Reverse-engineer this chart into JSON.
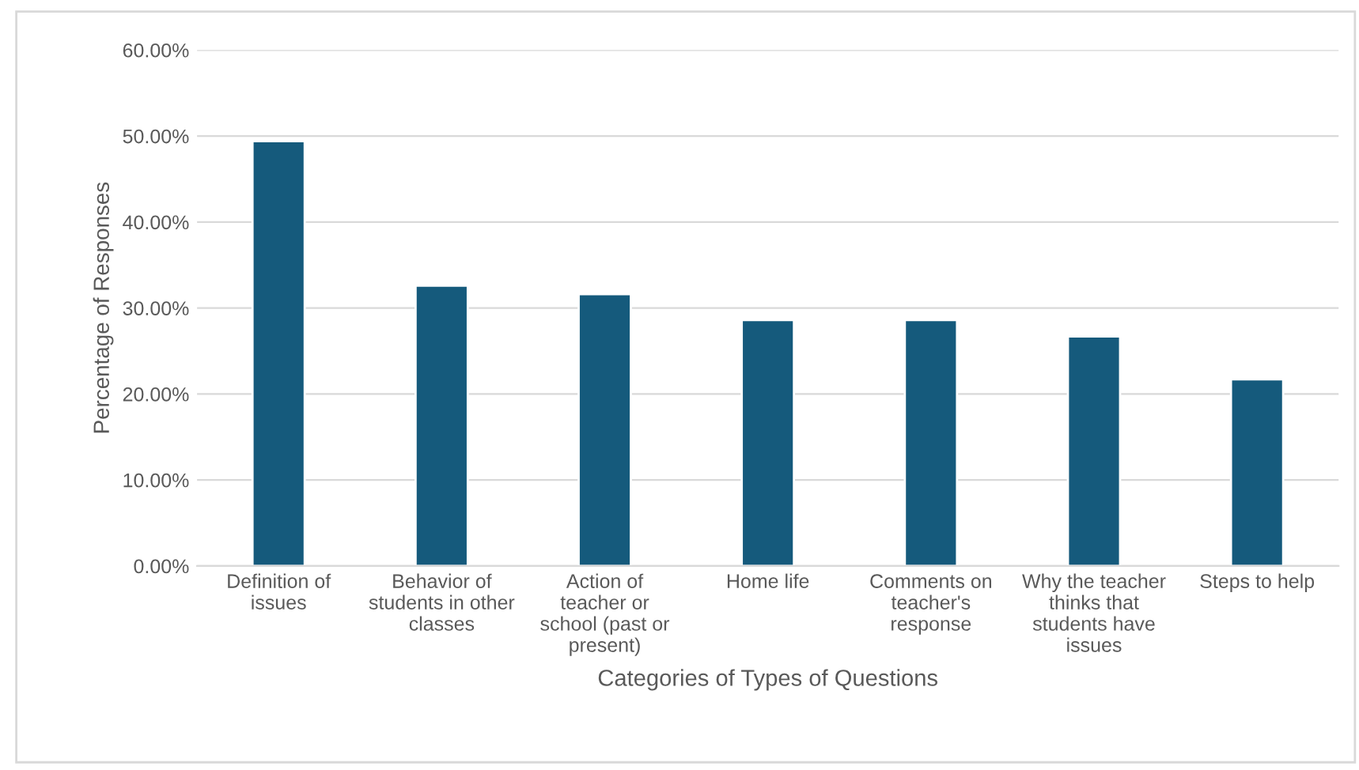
{
  "chart_data": {
    "type": "bar",
    "xlabel": "Categories of Types of Questions",
    "ylabel": "Percentage of Responses",
    "categories": [
      "Definition of\nissues",
      "Behavior of\nstudents in other\nclasses",
      "Action of\nteacher or\nschool (past or\npresent)",
      "Home life",
      "Comments on\nteacher's\nresponse",
      "Why the teacher\nthinks that\nstudents have\nissues",
      "Steps to help"
    ],
    "values": [
      49.4,
      32.6,
      31.6,
      28.6,
      28.6,
      26.7,
      21.7
    ],
    "color": "#155a7c",
    "ylim": [
      0,
      60
    ],
    "yticks": [
      {
        "value": 0,
        "label": "0.00%"
      },
      {
        "value": 10,
        "label": "10.00%"
      },
      {
        "value": 20,
        "label": "20.00%"
      },
      {
        "value": 30,
        "label": "30.00%"
      },
      {
        "value": 40,
        "label": "40.00%"
      },
      {
        "value": 50,
        "label": "50.00%"
      },
      {
        "value": 60,
        "label": "60.00%"
      }
    ],
    "grid": "y"
  }
}
